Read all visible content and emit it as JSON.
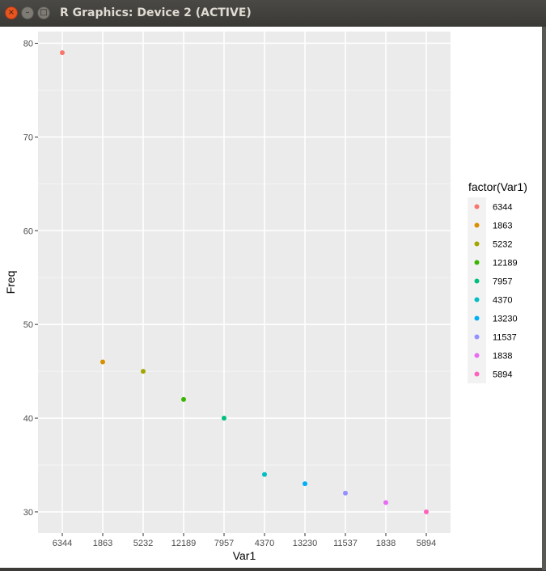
{
  "window": {
    "title": "R Graphics: Device 2 (ACTIVE)",
    "close_label": "×",
    "min_label": "–",
    "max_label": "□"
  },
  "chart_data": {
    "type": "scatter",
    "categories": [
      "6344",
      "1863",
      "5232",
      "12189",
      "7957",
      "4370",
      "13230",
      "11537",
      "1838",
      "5894"
    ],
    "values": [
      79,
      46,
      45,
      42,
      40,
      34,
      33,
      32,
      31,
      30
    ],
    "colors": [
      "#F8766D",
      "#D89000",
      "#A3A500",
      "#39B600",
      "#00BF7D",
      "#00BFC4",
      "#00B0F6",
      "#9590FF",
      "#E76BF3",
      "#FF62BC"
    ],
    "xlabel": "Var1",
    "ylabel": "Freq",
    "yticks": [
      30,
      40,
      50,
      60,
      70,
      80
    ],
    "ylim": [
      27.75,
      81.25
    ],
    "grid": true,
    "panel_background": "#EBEBEB",
    "legend": {
      "title": "factor(Var1)",
      "position": "right"
    }
  }
}
